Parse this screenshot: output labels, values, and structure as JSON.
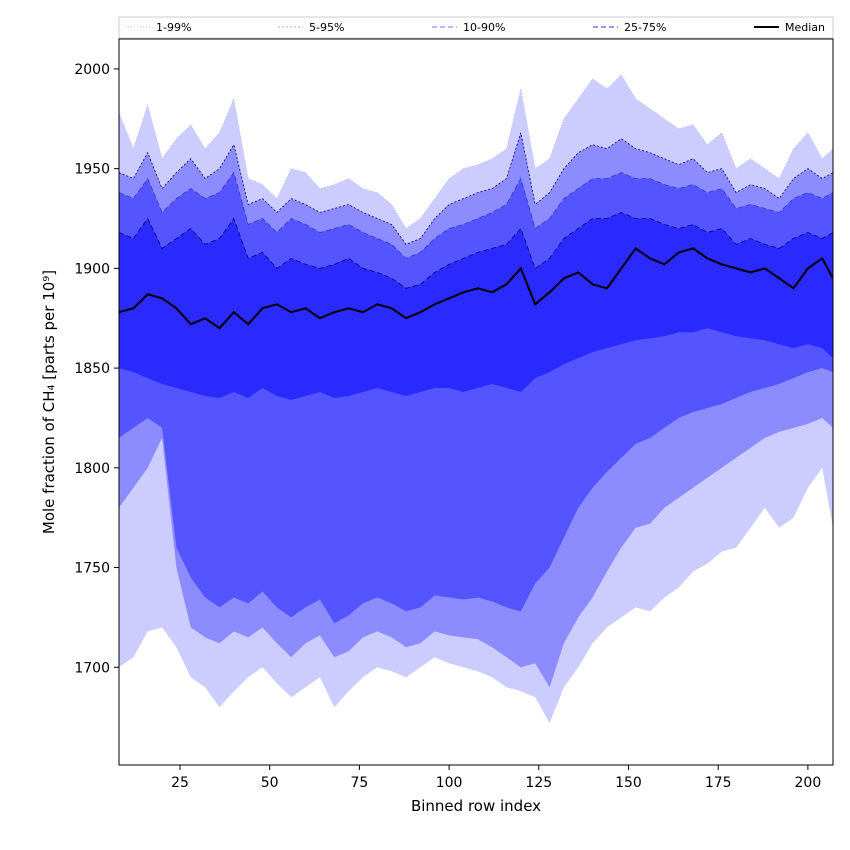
{
  "chart_data": {
    "type": "area",
    "title": "",
    "xlabel": "Binned row index",
    "ylabel": "Mole fraction of CH₄ [parts per 10⁹]",
    "xlim": [
      8,
      207
    ],
    "ylim": [
      1651,
      2015
    ],
    "xticks": [
      25,
      50,
      75,
      100,
      125,
      150,
      175,
      200
    ],
    "yticks": [
      1700,
      1750,
      1800,
      1850,
      1900,
      1950,
      2000
    ],
    "grid": false,
    "legend": {
      "placement": "top",
      "entries": [
        {
          "label": "1-99%",
          "style": "dotted-thin"
        },
        {
          "label": "5-95%",
          "style": "dotted"
        },
        {
          "label": "10-90%",
          "style": "dashed-light"
        },
        {
          "label": "25-75%",
          "style": "dashed"
        },
        {
          "label": "Median",
          "style": "solid-black"
        }
      ]
    },
    "colors": {
      "band_1_99": "#ccccff",
      "band_5_95": "#8c8cff",
      "band_10_90": "#5555ff",
      "band_25_75": "#2a2aff",
      "median": "#000000"
    },
    "x": [
      8,
      12,
      16,
      20,
      24,
      28,
      32,
      36,
      40,
      44,
      48,
      52,
      56,
      60,
      64,
      68,
      72,
      76,
      80,
      84,
      88,
      92,
      96,
      100,
      104,
      108,
      112,
      116,
      120,
      124,
      128,
      132,
      136,
      140,
      144,
      148,
      152,
      156,
      160,
      164,
      168,
      172,
      176,
      180,
      184,
      188,
      192,
      196,
      200,
      204,
      207
    ],
    "series": [
      {
        "name": "1-99%",
        "upper": [
          1978,
          1960,
          1982,
          1955,
          1965,
          1972,
          1960,
          1968,
          1985,
          1945,
          1942,
          1935,
          1950,
          1948,
          1940,
          1942,
          1945,
          1940,
          1938,
          1932,
          1920,
          1925,
          1935,
          1945,
          1950,
          1952,
          1955,
          1960,
          1990,
          1950,
          1955,
          1975,
          1985,
          1995,
          1990,
          1997,
          1985,
          1980,
          1975,
          1970,
          1972,
          1962,
          1968,
          1950,
          1955,
          1950,
          1945,
          1960,
          1968,
          1955,
          1960
        ],
        "lower": [
          1700,
          1705,
          1718,
          1720,
          1710,
          1695,
          1690,
          1680,
          1688,
          1695,
          1700,
          1692,
          1685,
          1690,
          1695,
          1680,
          1688,
          1695,
          1700,
          1698,
          1695,
          1700,
          1705,
          1702,
          1700,
          1698,
          1695,
          1690,
          1688,
          1685,
          1672,
          1690,
          1700,
          1712,
          1720,
          1725,
          1730,
          1728,
          1735,
          1740,
          1748,
          1752,
          1758,
          1760,
          1770,
          1780,
          1770,
          1775,
          1790,
          1800,
          1770
        ]
      },
      {
        "name": "5-95%",
        "upper": [
          1948,
          1945,
          1958,
          1940,
          1948,
          1955,
          1945,
          1950,
          1962,
          1932,
          1935,
          1928,
          1935,
          1932,
          1928,
          1930,
          1932,
          1928,
          1925,
          1922,
          1912,
          1915,
          1925,
          1932,
          1935,
          1938,
          1940,
          1945,
          1968,
          1932,
          1938,
          1950,
          1958,
          1962,
          1960,
          1965,
          1960,
          1958,
          1955,
          1952,
          1955,
          1948,
          1950,
          1938,
          1942,
          1940,
          1935,
          1945,
          1950,
          1945,
          1948
        ],
        "lower": [
          1780,
          1790,
          1800,
          1815,
          1750,
          1720,
          1715,
          1712,
          1718,
          1715,
          1720,
          1712,
          1705,
          1712,
          1716,
          1705,
          1708,
          1715,
          1718,
          1715,
          1710,
          1712,
          1718,
          1716,
          1715,
          1714,
          1710,
          1705,
          1700,
          1702,
          1690,
          1712,
          1725,
          1735,
          1748,
          1760,
          1770,
          1772,
          1780,
          1785,
          1790,
          1795,
          1800,
          1805,
          1810,
          1815,
          1818,
          1820,
          1822,
          1825,
          1820
        ]
      },
      {
        "name": "10-90%",
        "upper": [
          1938,
          1935,
          1945,
          1928,
          1935,
          1940,
          1935,
          1938,
          1948,
          1922,
          1925,
          1918,
          1925,
          1922,
          1918,
          1920,
          1922,
          1918,
          1915,
          1912,
          1905,
          1908,
          1915,
          1920,
          1922,
          1925,
          1928,
          1932,
          1945,
          1920,
          1925,
          1935,
          1940,
          1945,
          1945,
          1948,
          1945,
          1945,
          1942,
          1940,
          1942,
          1938,
          1940,
          1930,
          1932,
          1930,
          1928,
          1935,
          1938,
          1935,
          1938
        ],
        "lower": [
          1815,
          1820,
          1825,
          1820,
          1760,
          1745,
          1735,
          1730,
          1735,
          1732,
          1738,
          1730,
          1725,
          1730,
          1734,
          1722,
          1726,
          1732,
          1735,
          1732,
          1728,
          1730,
          1736,
          1735,
          1734,
          1735,
          1733,
          1730,
          1728,
          1742,
          1750,
          1765,
          1780,
          1790,
          1798,
          1805,
          1812,
          1815,
          1820,
          1825,
          1828,
          1830,
          1832,
          1835,
          1838,
          1840,
          1842,
          1845,
          1848,
          1850,
          1848
        ]
      },
      {
        "name": "25-75%",
        "upper": [
          1918,
          1915,
          1925,
          1910,
          1915,
          1920,
          1912,
          1915,
          1925,
          1905,
          1908,
          1900,
          1905,
          1902,
          1900,
          1902,
          1905,
          1900,
          1898,
          1895,
          1890,
          1892,
          1898,
          1902,
          1905,
          1908,
          1910,
          1912,
          1920,
          1900,
          1905,
          1915,
          1920,
          1925,
          1925,
          1928,
          1925,
          1925,
          1922,
          1920,
          1922,
          1918,
          1920,
          1912,
          1915,
          1912,
          1910,
          1915,
          1918,
          1915,
          1918
        ],
        "lower": [
          1850,
          1848,
          1845,
          1842,
          1840,
          1838,
          1836,
          1835,
          1838,
          1835,
          1840,
          1836,
          1834,
          1836,
          1838,
          1835,
          1836,
          1838,
          1840,
          1838,
          1836,
          1838,
          1840,
          1840,
          1838,
          1840,
          1842,
          1840,
          1838,
          1845,
          1848,
          1852,
          1855,
          1858,
          1860,
          1862,
          1864,
          1865,
          1866,
          1868,
          1868,
          1870,
          1868,
          1866,
          1865,
          1864,
          1862,
          1860,
          1862,
          1860,
          1855
        ]
      },
      {
        "name": "Median",
        "values": [
          1878,
          1880,
          1887,
          1885,
          1880,
          1872,
          1875,
          1870,
          1878,
          1872,
          1880,
          1882,
          1878,
          1880,
          1875,
          1878,
          1880,
          1878,
          1882,
          1880,
          1875,
          1878,
          1882,
          1885,
          1888,
          1890,
          1888,
          1892,
          1900,
          1882,
          1888,
          1895,
          1898,
          1892,
          1890,
          1900,
          1910,
          1905,
          1902,
          1908,
          1910,
          1905,
          1902,
          1900,
          1898,
          1900,
          1895,
          1890,
          1900,
          1905,
          1895
        ]
      }
    ]
  }
}
